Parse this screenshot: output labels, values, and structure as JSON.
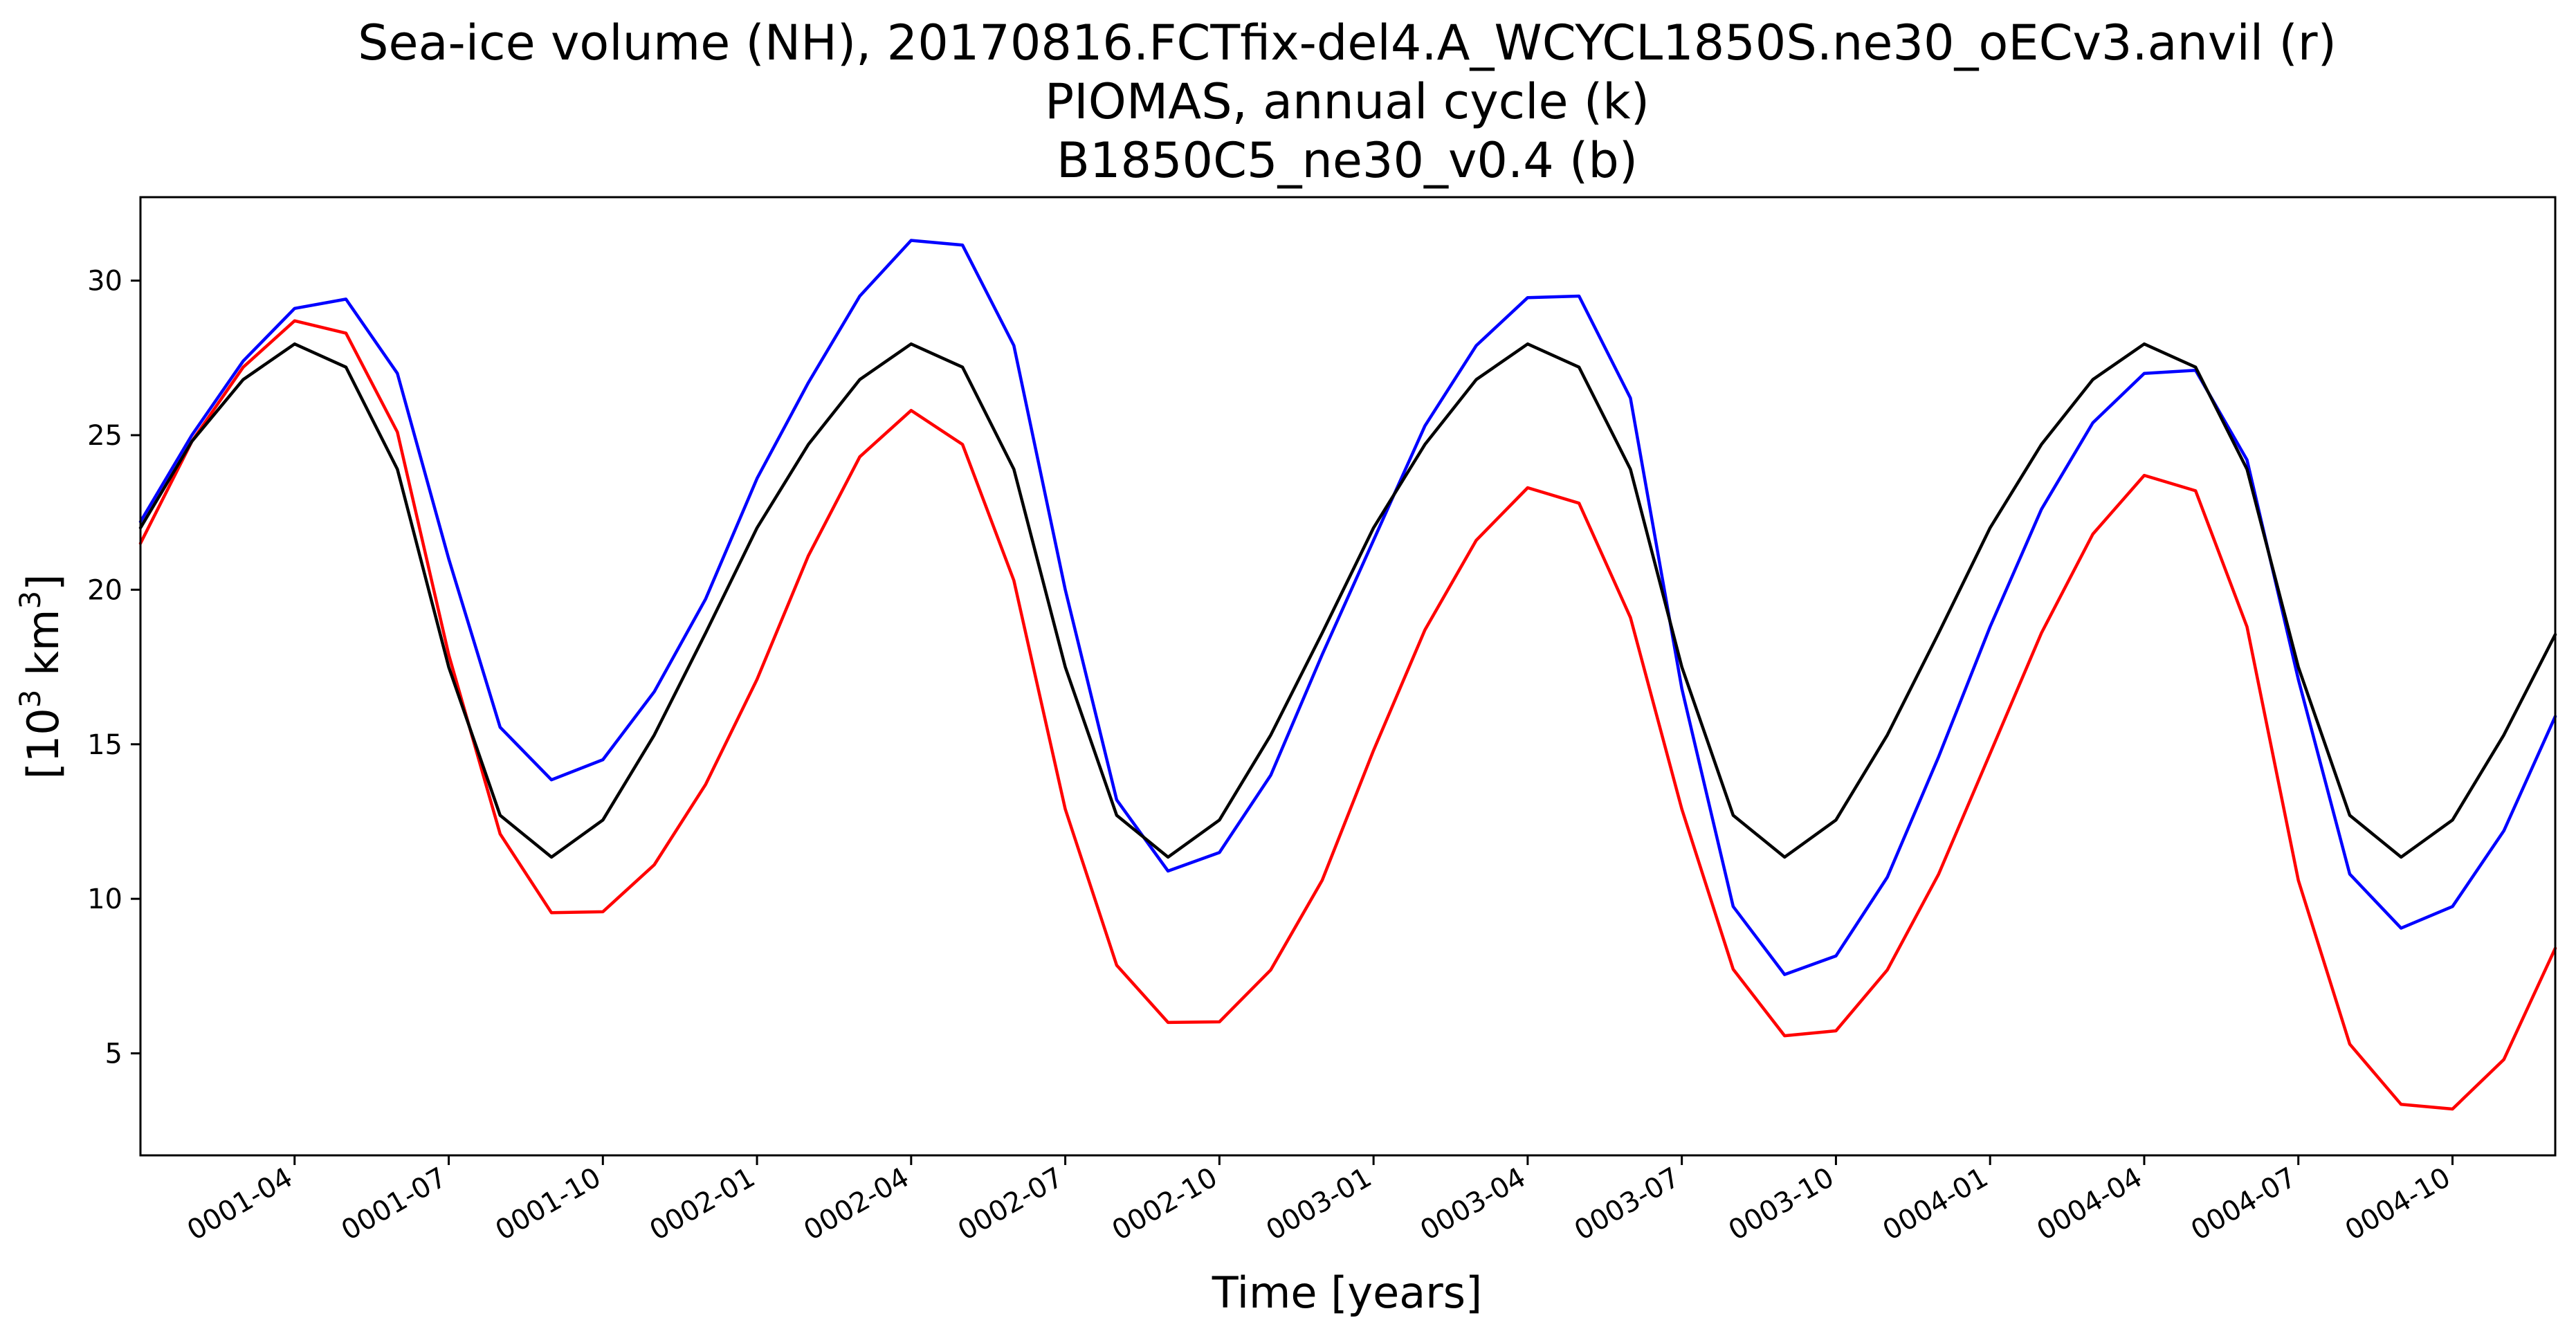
{
  "chart_data": {
    "type": "line",
    "title": [
      "Sea-ice volume (NH), 20170816.FCTfix-del4.A_WCYCL1850S.ne30_oECv3.anvil (r)",
      "PIOMAS, annual cycle (k)",
      "B1850C5_ne30_v0.4 (b)"
    ],
    "xlabel": "Time [years]",
    "ylabel": {
      "base": "[10",
      "sup1": "3",
      "mid": " km",
      "sup2": "3",
      "end": "]"
    },
    "x_start_month": "0001-01",
    "x": [
      "0001-01",
      "0001-02",
      "0001-03",
      "0001-04",
      "0001-05",
      "0001-06",
      "0001-07",
      "0001-08",
      "0001-09",
      "0001-10",
      "0001-11",
      "0001-12",
      "0002-01",
      "0002-02",
      "0002-03",
      "0002-04",
      "0002-05",
      "0002-06",
      "0002-07",
      "0002-08",
      "0002-09",
      "0002-10",
      "0002-11",
      "0002-12",
      "0003-01",
      "0003-02",
      "0003-03",
      "0003-04",
      "0003-05",
      "0003-06",
      "0003-07",
      "0003-08",
      "0003-09",
      "0003-10",
      "0003-11",
      "0003-12",
      "0004-01",
      "0004-02",
      "0004-03",
      "0004-04",
      "0004-05",
      "0004-06",
      "0004-07",
      "0004-08",
      "0004-09",
      "0004-10",
      "0004-11",
      "0004-12"
    ],
    "xticks": [
      "0001-04",
      "0001-07",
      "0001-10",
      "0002-01",
      "0002-04",
      "0002-07",
      "0002-10",
      "0003-01",
      "0003-04",
      "0003-07",
      "0003-10",
      "0004-01",
      "0004-04",
      "0004-07",
      "0004-10"
    ],
    "xlim": [
      "0001-01",
      "0004-12"
    ],
    "yticks": [
      5,
      10,
      15,
      20,
      25,
      30
    ],
    "ylim": [
      1.7,
      32.7
    ],
    "grid": false,
    "series": [
      {
        "color": "#ff0000",
        "values": [
          21.5,
          24.8,
          27.2,
          28.7,
          28.3,
          25.1,
          17.9,
          12.1,
          9.55,
          9.58,
          11.1,
          13.7,
          17.1,
          21.1,
          24.3,
          25.8,
          24.7,
          20.3,
          12.9,
          7.85,
          6.0,
          6.02,
          7.7,
          10.6,
          14.8,
          18.7,
          21.6,
          23.3,
          22.8,
          19.1,
          12.9,
          7.72,
          5.57,
          5.73,
          7.7,
          10.8,
          14.7,
          18.6,
          21.8,
          23.7,
          23.2,
          18.8,
          10.6,
          5.3,
          3.35,
          3.2,
          4.8,
          8.4
        ]
      },
      {
        "color": "#0000ff",
        "values": [
          22.2,
          25.0,
          27.4,
          29.1,
          29.4,
          27.0,
          21.0,
          15.55,
          13.85,
          14.5,
          16.7,
          19.7,
          23.6,
          26.7,
          29.5,
          31.3,
          31.15,
          27.9,
          20.0,
          13.2,
          10.9,
          11.5,
          14.0,
          17.9,
          21.6,
          25.3,
          27.9,
          29.45,
          29.5,
          26.2,
          16.8,
          9.75,
          7.55,
          8.15,
          10.7,
          14.6,
          18.8,
          22.6,
          25.4,
          27.0,
          27.1,
          24.2,
          17.1,
          10.8,
          9.05,
          9.75,
          12.2,
          15.9
        ]
      },
      {
        "color": "#000000",
        "values": [
          22.0,
          24.8,
          26.8,
          27.95,
          27.2,
          23.9,
          17.5,
          12.7,
          11.35,
          12.55,
          15.3,
          18.6,
          22.0,
          24.7,
          26.8,
          27.95,
          27.2,
          23.9,
          17.5,
          12.7,
          11.35,
          12.55,
          15.3,
          18.6,
          22.0,
          24.7,
          26.8,
          27.95,
          27.2,
          23.9,
          17.5,
          12.7,
          11.35,
          12.55,
          15.3,
          18.6,
          22.0,
          24.7,
          26.8,
          27.95,
          27.2,
          23.9,
          17.5,
          12.7,
          11.35,
          12.55,
          15.3,
          18.55
        ]
      }
    ]
  }
}
